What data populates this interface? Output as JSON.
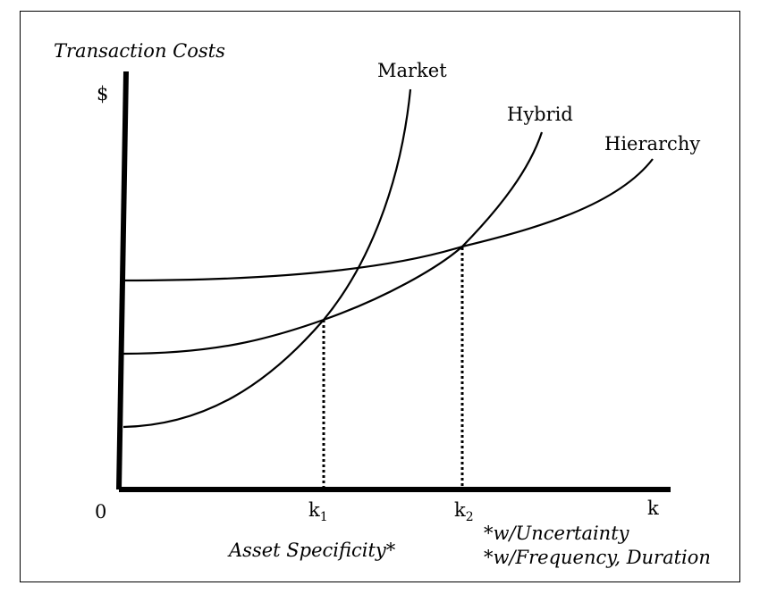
{
  "chart_data": {
    "type": "line",
    "title": "",
    "ylabel": "Transaction Costs",
    "y_unit": "$",
    "xlabel": "Asset Specificity*",
    "notes": [
      "*w/Uncertainty",
      "*w/Frequency, Duration"
    ],
    "origin_label": "0",
    "x_ticks": [
      {
        "name": "k1",
        "base": "k",
        "sub": "1"
      },
      {
        "name": "k2",
        "base": "k",
        "sub": "2"
      },
      {
        "name": "k",
        "base": "k",
        "sub": ""
      }
    ],
    "series": [
      {
        "name": "Market",
        "values_description": "lowest at k=0, rises steeply (convex)"
      },
      {
        "name": "Hybrid",
        "values_description": "intermediate start, rises moderately"
      },
      {
        "name": "Hierarchy",
        "values_description": "highest start, rises slowly"
      }
    ],
    "crossings": [
      {
        "at": "k1",
        "between": [
          "Market",
          "Hybrid"
        ]
      },
      {
        "at": "k2",
        "between": [
          "Hybrid",
          "Hierarchy"
        ]
      }
    ],
    "grid": false
  }
}
